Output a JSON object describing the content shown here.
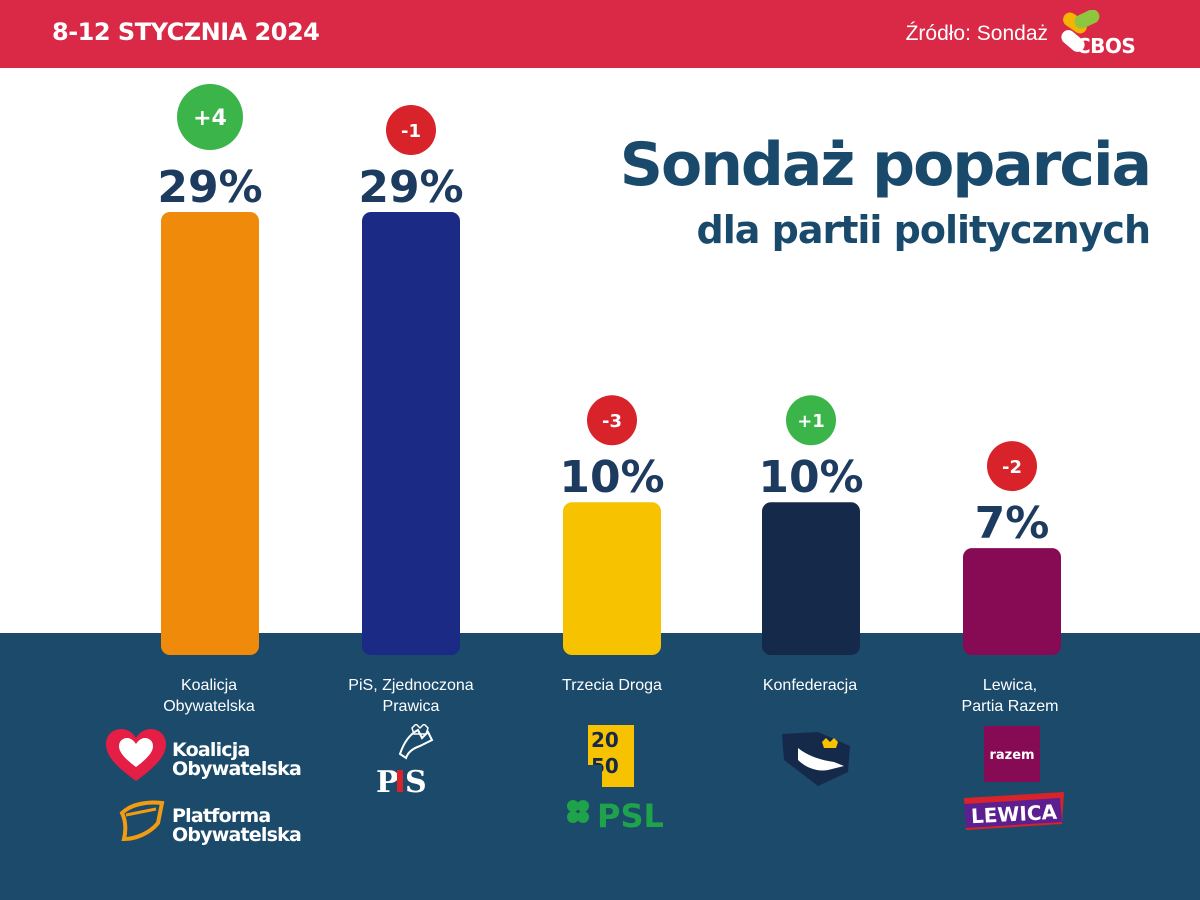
{
  "header": {
    "date": "8-12 STYCZNIA 2024",
    "source": "Źródło: Sondaż",
    "source_brand": "CBOS",
    "background_color": "#d92946"
  },
  "heading": {
    "title": "Sondaż poparcia",
    "subtitle": "dla partii politycznych"
  },
  "chart_data": {
    "type": "bar",
    "title": "Sondaż poparcia dla partii politycznych",
    "categories": [
      "Koalicja Obywatelska",
      "PiS, Zjednoczona Prawica",
      "Trzecia Droga",
      "Konfederacja",
      "Lewica, Partia Razem"
    ],
    "values": [
      29,
      29,
      10,
      10,
      7
    ],
    "value_labels": [
      "29%",
      "29%",
      "10%",
      "10%",
      "7%"
    ],
    "changes": [
      "+4",
      "-1",
      "-3",
      "+1",
      "-2"
    ],
    "change_colors": [
      "#3bb54a",
      "#d8232a",
      "#d8232a",
      "#3bb54a",
      "#d8232a"
    ],
    "bar_colors": [
      "#f08a0a",
      "#1b2a84",
      "#f7c200",
      "#15294a",
      "#870b54"
    ],
    "ylim": [
      0,
      29
    ],
    "xlabel": "",
    "ylabel": "",
    "grid": false,
    "legend": "none"
  },
  "parties": [
    {
      "label": "Koalicja\nObywatelska",
      "logos": [
        "Koalicja\nObywatelska",
        "Platforma\nObywatelska"
      ]
    },
    {
      "label": "PiS, Zjednoczona\nPrawica",
      "logos": [
        "PiS"
      ]
    },
    {
      "label": "Trzecia Droga",
      "logos": [
        "2050",
        "PSL"
      ]
    },
    {
      "label": "Konfederacja",
      "logos": [
        "eagle"
      ]
    },
    {
      "label": "Lewica,\nPartia Razem",
      "logos": [
        "razem",
        "LEWICA"
      ]
    }
  ],
  "colors": {
    "title": "#1a4a6b",
    "band": "#1b4a6b",
    "value_text": "#1d3a5f"
  }
}
